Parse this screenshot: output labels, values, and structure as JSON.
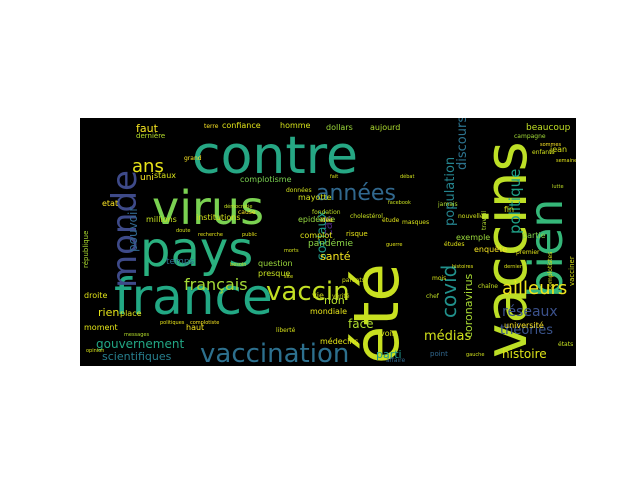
{
  "wordcloud": {
    "words": [
      {
        "text": "contre",
        "color": "#26a784",
        "rotate": false
      },
      {
        "text": "été",
        "color": "#c8e020",
        "rotate": true
      },
      {
        "text": "vaccins",
        "color": "#bddf26",
        "rotate": true
      },
      {
        "text": "virus",
        "color": "#7ad151",
        "rotate": false
      },
      {
        "text": "pays",
        "color": "#2ab07f",
        "rotate": false
      },
      {
        "text": "france",
        "color": "#22a884",
        "rotate": false
      },
      {
        "text": "bien",
        "color": "#35b779",
        "rotate": true
      },
      {
        "text": "monde",
        "color": "#3e4a89",
        "rotate": true
      },
      {
        "text": "vaccination",
        "color": "#2d708e",
        "rotate": false
      },
      {
        "text": "années",
        "color": "#31688e",
        "rotate": false
      },
      {
        "text": "vaccin",
        "color": "#c2df23",
        "rotate": false
      },
      {
        "text": "covid",
        "color": "#21918c",
        "rotate": true
      },
      {
        "text": "ans",
        "color": "#e7e419",
        "rotate": false
      },
      {
        "text": "français",
        "color": "#a5db36",
        "rotate": false
      },
      {
        "text": "politique",
        "color": "#1fa187",
        "rotate": true
      },
      {
        "text": "population",
        "color": "#25848e",
        "rotate": true
      },
      {
        "text": "discours",
        "color": "#2c738e",
        "rotate": true
      },
      {
        "text": "ailleurs",
        "color": "#f1e51d",
        "rotate": false
      },
      {
        "text": "réseaux",
        "color": "#3b518b",
        "rotate": false
      },
      {
        "text": "sociaux",
        "color": "#1f9a8a",
        "rotate": true
      },
      {
        "text": "médias",
        "color": "#d2e21b",
        "rotate": false
      },
      {
        "text": "théories",
        "color": "#3a538b",
        "rotate": false
      },
      {
        "text": "histoire",
        "color": "#dde318",
        "rotate": false
      },
      {
        "text": "coronavirus",
        "color": "#a8db34",
        "rotate": true
      },
      {
        "text": "gouvernement",
        "color": "#22a785",
        "rotate": false
      },
      {
        "text": "scientifiques",
        "color": "#277f8e",
        "rotate": false
      },
      {
        "text": "santé",
        "color": "#f6e620",
        "rotate": false
      },
      {
        "text": "parti",
        "color": "#1f988b",
        "rotate": false
      },
      {
        "text": "pouvoir",
        "color": "#31678e",
        "rotate": true
      },
      {
        "text": "rien",
        "color": "#e5e419",
        "rotate": false
      },
      {
        "text": "faut",
        "color": "#f8e621",
        "rotate": false
      },
      {
        "text": "face",
        "color": "#b0dd2f",
        "rotate": false
      },
      {
        "text": "non",
        "color": "#b5de2b",
        "rotate": false
      },
      {
        "text": "cas",
        "color": "#482576",
        "rotate": true
      },
      {
        "text": "pandémie",
        "color": "#8bd646",
        "rotate": false
      },
      {
        "text": "temps",
        "color": "#2e6f8e",
        "rotate": false
      },
      {
        "text": "beaucoup",
        "color": "#c0df25",
        "rotate": false
      },
      {
        "text": "partie",
        "color": "#7fd34e",
        "rotate": false
      },
      {
        "text": "université",
        "color": "#fde725",
        "rotate": false
      },
      {
        "text": "confiance",
        "color": "#e2e418",
        "rotate": false
      },
      {
        "text": "homme",
        "color": "#d5e21a",
        "rotate": false
      },
      {
        "text": "dollars",
        "color": "#9dd93b",
        "rotate": false
      },
      {
        "text": "aujourd",
        "color": "#addc30",
        "rotate": false
      },
      {
        "text": "enquête",
        "color": "#f8e621",
        "rotate": false
      },
      {
        "text": "jean",
        "color": "#d8e219",
        "rotate": false
      },
      {
        "text": "exemple",
        "color": "#9bd93c",
        "rotate": false
      },
      {
        "text": "fin",
        "color": "#dae319",
        "rotate": false
      },
      {
        "text": "uni",
        "color": "#fbe723",
        "rotate": false
      },
      {
        "text": "staux",
        "color": "#d8e219",
        "rotate": false
      },
      {
        "text": "complotisme",
        "color": "#7ad151",
        "rotate": false
      },
      {
        "text": "mayotte",
        "color": "#d0e11c",
        "rotate": false
      },
      {
        "text": "institutions",
        "color": "#d2e21b",
        "rotate": false
      },
      {
        "text": "millions",
        "color": "#c5e021",
        "rotate": false
      },
      {
        "text": "epidémie",
        "color": "#95d840",
        "rotate": false
      },
      {
        "text": "complot",
        "color": "#dde318",
        "rotate": false
      },
      {
        "text": "question",
        "color": "#9bd93c",
        "rotate": false
      },
      {
        "text": "presque",
        "color": "#c5e021",
        "rotate": false
      },
      {
        "text": "vie",
        "color": "#d5e21a",
        "rotate": false
      },
      {
        "text": "mondiale",
        "color": "#e5e419",
        "rotate": false
      },
      {
        "text": "médecins",
        "color": "#e2e418",
        "rotate": false
      },
      {
        "text": "voir",
        "color": "#d5e21a",
        "rotate": false
      },
      {
        "text": "moment",
        "color": "#e2e418",
        "rotate": false
      },
      {
        "text": "haut",
        "color": "#f8e621",
        "rotate": false
      },
      {
        "text": "place",
        "color": "#dde318",
        "rotate": false
      },
      {
        "text": "droite",
        "color": "#e2e418",
        "rotate": false
      },
      {
        "text": "etat",
        "color": "#fde725",
        "rotate": false
      },
      {
        "text": "république",
        "color": "#addc30",
        "rotate": true
      },
      {
        "text": "vacciner",
        "color": "#dae319",
        "rotate": true
      },
      {
        "text": "dernière",
        "color": "#b5de2b",
        "rotate": false
      },
      {
        "text": "point",
        "color": "#31688e",
        "rotate": false
      },
      {
        "text": "risque",
        "color": "#e7e419",
        "rotate": false
      },
      {
        "text": "idée",
        "color": "#fbe723",
        "rotate": false
      },
      {
        "text": "cholestérol",
        "color": "#c8e020",
        "rotate": false
      },
      {
        "text": "jamais",
        "color": "#b0dd2f",
        "rotate": false
      },
      {
        "text": "nouvelle",
        "color": "#d0e11c",
        "rotate": false
      },
      {
        "text": "fondation",
        "color": "#bddf26",
        "rotate": false
      },
      {
        "text": "complotistes",
        "color": "#d8e219",
        "rotate": true
      },
      {
        "text": "campagne",
        "color": "#a2da37",
        "rotate": false
      },
      {
        "text": "enfants",
        "color": "#d2e21b",
        "rotate": false
      },
      {
        "text": "travail",
        "color": "#b0dd2f",
        "rotate": true
      },
      {
        "text": "masques",
        "color": "#d8e219",
        "rotate": false
      },
      {
        "text": "chaîne",
        "color": "#c5e021",
        "rotate": false
      },
      {
        "text": "études",
        "color": "#e2e418",
        "rotate": false
      },
      {
        "text": "mois",
        "color": "#d8e219",
        "rotate": false
      },
      {
        "text": "chef",
        "color": "#c0df25",
        "rotate": false
      },
      {
        "text": "affaire",
        "color": "#31688e",
        "rotate": false
      },
      {
        "text": "états",
        "color": "#c5e021",
        "rotate": false
      },
      {
        "text": "terre",
        "color": "#fde725",
        "rotate": false
      },
      {
        "text": "étude",
        "color": "#e2e418",
        "rotate": false
      },
      {
        "text": "grand",
        "color": "#fde725",
        "rotate": false
      },
      {
        "text": "cause",
        "color": "#fbe723",
        "rotate": false
      },
      {
        "text": "données",
        "color": "#d2e21b",
        "rotate": false
      },
      {
        "text": "premier",
        "color": "#e2e418",
        "rotate": false
      },
      {
        "text": "parents",
        "color": "#d5e21a",
        "rotate": false
      },
      {
        "text": "vérité",
        "color": "#d0e11c",
        "rotate": false
      },
      {
        "text": "liberté",
        "color": "#d8e219",
        "rotate": false
      },
      {
        "text": "politiques",
        "color": "#e7e419",
        "rotate": false
      },
      {
        "text": "complotiste",
        "color": "#f8e621",
        "rotate": false
      },
      {
        "text": "besoin",
        "color": "#c8e020",
        "rotate": false
      },
      {
        "text": "recherche",
        "color": "#e5e419",
        "rotate": false
      },
      {
        "text": "débat",
        "color": "#d0e11c",
        "rotate": false
      },
      {
        "text": "sommes",
        "color": "#fde725",
        "rotate": false
      },
      {
        "text": "semaines",
        "color": "#e2e418",
        "rotate": false
      },
      {
        "text": "démocratie",
        "color": "#c5e021",
        "rotate": false
      },
      {
        "text": "opinion",
        "color": "#d8e219",
        "rotate": false
      },
      {
        "text": "messages",
        "color": "#b5de2b",
        "rotate": false
      },
      {
        "text": "gauche",
        "color": "#d0e11c",
        "rotate": false
      },
      {
        "text": "dernier",
        "color": "#dde318",
        "rotate": false
      },
      {
        "text": "guerre",
        "color": "#e2e418",
        "rotate": false
      },
      {
        "text": "site",
        "color": "#d8e219",
        "rotate": false
      },
      {
        "text": "facebook",
        "color": "#c8e020",
        "rotate": false
      },
      {
        "text": "public",
        "color": "#e5e419",
        "rotate": false
      },
      {
        "text": "doute",
        "color": "#d0e11c",
        "rotate": false
      },
      {
        "text": "morts",
        "color": "#d5e21a",
        "rotate": false
      },
      {
        "text": "lutte",
        "color": "#c0df25",
        "rotate": false
      },
      {
        "text": "fait",
        "color": "#d8e219",
        "rotate": false
      },
      {
        "text": "histoires",
        "color": "#e2e418",
        "rotate": false
      }
    ]
  }
}
